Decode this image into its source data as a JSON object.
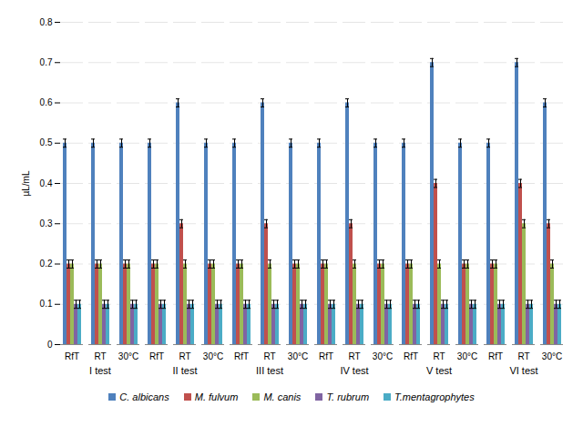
{
  "chart_data": {
    "type": "bar",
    "y_label": "µL/mL",
    "categories": [
      "RfT",
      "RT",
      "30°C",
      "RfT",
      "RT",
      "30°C",
      "RfT",
      "RT",
      "30°C",
      "RfT",
      "RT",
      "30°C",
      "RfT",
      "RT",
      "30°C",
      "RfT",
      "RT",
      "30°C"
    ],
    "category_groups": [
      {
        "name": "I test",
        "count": 3
      },
      {
        "name": "II test",
        "count": 3
      },
      {
        "name": "III test",
        "count": 3
      },
      {
        "name": "IV test",
        "count": 3
      },
      {
        "name": "V test",
        "count": 3
      },
      {
        "name": "VI test",
        "count": 3
      }
    ],
    "series": [
      {
        "name": "C. albicans",
        "color": "#4f81bd",
        "values": [
          0.5,
          0.5,
          0.5,
          0.5,
          0.6,
          0.5,
          0.5,
          0.6,
          0.5,
          0.5,
          0.6,
          0.5,
          0.5,
          0.7,
          0.5,
          0.5,
          0.7,
          0.6
        ],
        "errors": [
          0.01,
          0.01,
          0.01,
          0.01,
          0.01,
          0.01,
          0.01,
          0.01,
          0.01,
          0.01,
          0.01,
          0.01,
          0.01,
          0.01,
          0.01,
          0.01,
          0.01,
          0.01
        ]
      },
      {
        "name": "M. fulvum",
        "color": "#c0504d",
        "values": [
          0.2,
          0.2,
          0.2,
          0.2,
          0.3,
          0.2,
          0.2,
          0.3,
          0.2,
          0.2,
          0.3,
          0.2,
          0.2,
          0.4,
          0.2,
          0.2,
          0.4,
          0.3
        ],
        "errors": [
          0.01,
          0.01,
          0.01,
          0.01,
          0.01,
          0.01,
          0.01,
          0.01,
          0.01,
          0.01,
          0.01,
          0.01,
          0.01,
          0.01,
          0.01,
          0.01,
          0.01,
          0.01
        ]
      },
      {
        "name": "M. canis",
        "color": "#9bbb59",
        "values": [
          0.2,
          0.2,
          0.2,
          0.2,
          0.2,
          0.2,
          0.2,
          0.2,
          0.2,
          0.2,
          0.2,
          0.2,
          0.2,
          0.2,
          0.2,
          0.2,
          0.3,
          0.2
        ],
        "errors": [
          0.01,
          0.01,
          0.01,
          0.01,
          0.01,
          0.01,
          0.01,
          0.01,
          0.01,
          0.01,
          0.01,
          0.01,
          0.01,
          0.01,
          0.01,
          0.01,
          0.01,
          0.01
        ]
      },
      {
        "name": "T. rubrum",
        "color": "#8064a2",
        "values": [
          0.1,
          0.1,
          0.1,
          0.1,
          0.1,
          0.1,
          0.1,
          0.1,
          0.1,
          0.1,
          0.1,
          0.1,
          0.1,
          0.1,
          0.1,
          0.1,
          0.1,
          0.1
        ],
        "errors": [
          0.01,
          0.01,
          0.01,
          0.01,
          0.01,
          0.01,
          0.01,
          0.01,
          0.01,
          0.01,
          0.01,
          0.01,
          0.01,
          0.01,
          0.01,
          0.01,
          0.01,
          0.01
        ]
      },
      {
        "name": "T.mentagrophytes",
        "color": "#4bacc6",
        "values": [
          0.1,
          0.1,
          0.1,
          0.1,
          0.1,
          0.1,
          0.1,
          0.1,
          0.1,
          0.1,
          0.1,
          0.1,
          0.1,
          0.1,
          0.1,
          0.1,
          0.1,
          0.1
        ],
        "errors": [
          0.01,
          0.01,
          0.01,
          0.01,
          0.01,
          0.01,
          0.01,
          0.01,
          0.01,
          0.01,
          0.01,
          0.01,
          0.01,
          0.01,
          0.01,
          0.01,
          0.01,
          0.01
        ]
      }
    ],
    "ylim": [
      0,
      0.8
    ],
    "yticks": [
      0,
      0.1,
      0.2,
      0.3,
      0.4,
      0.5,
      0.6,
      0.7,
      0.8
    ],
    "grid": true,
    "legend": "bottom"
  }
}
